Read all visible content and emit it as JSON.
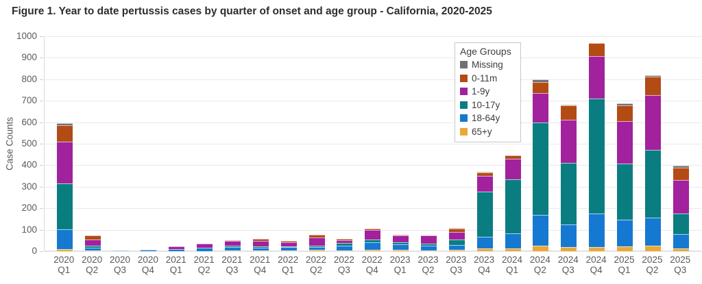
{
  "title": "Figure 1. Year to date pertussis cases by quarter of onset and age group - California, 2020-2025",
  "chart_data": {
    "type": "bar",
    "stacked": true,
    "stack_order": "bottom-to-top",
    "title": "Figure 1. Year to date pertussis cases by quarter of onset and age group - California, 2020-2025",
    "xlabel": "",
    "ylabel": "Case Counts",
    "ylim": [
      0,
      1000
    ],
    "ytick_interval": 100,
    "ytick_labels": [
      "0",
      "100",
      "200",
      "300",
      "400",
      "500",
      "600",
      "700",
      "800",
      "900",
      "1000"
    ],
    "grid": true,
    "categories": [
      "2020 Q1",
      "2020 Q2",
      "2020 Q3",
      "2020 Q4",
      "2021 Q1",
      "2021 Q2",
      "2021 Q3",
      "2021 Q4",
      "2022 Q1",
      "2022 Q2",
      "2022 Q3",
      "2022 Q4",
      "2023 Q1",
      "2023 Q2",
      "2023 Q3",
      "2023 Q4",
      "2024 Q1",
      "2024 Q2",
      "2024 Q3",
      "2024 Q4",
      "2025 Q1",
      "2025 Q2",
      "2025 Q3"
    ],
    "series": [
      {
        "name": "65+y",
        "color": "#eaa838",
        "values": [
          10,
          2,
          0,
          0,
          0,
          0,
          3,
          2,
          4,
          5,
          4,
          7,
          6,
          3,
          7,
          12,
          12,
          25,
          18,
          20,
          22,
          25,
          12
        ]
      },
      {
        "name": "18-64y",
        "color": "#1579d2",
        "values": [
          92,
          15,
          2,
          8,
          10,
          15,
          17,
          14,
          15,
          14,
          20,
          34,
          25,
          21,
          22,
          55,
          70,
          145,
          106,
          154,
          125,
          132,
          68
        ]
      },
      {
        "name": "10-17y",
        "color": "#0a7d81",
        "values": [
          212,
          8,
          0,
          0,
          1,
          2,
          5,
          7,
          3,
          5,
          14,
          14,
          12,
          11,
          25,
          209,
          252,
          430,
          287,
          536,
          262,
          315,
          94
        ]
      },
      {
        "name": "1-9y",
        "color": "#a2219c",
        "values": [
          195,
          30,
          0,
          0,
          12,
          17,
          24,
          26,
          20,
          40,
          14,
          44,
          31,
          39,
          36,
          74,
          95,
          135,
          200,
          198,
          196,
          254,
          156
        ]
      },
      {
        "name": "0-11m",
        "color": "#b34b15",
        "values": [
          78,
          17,
          0,
          0,
          0,
          0,
          1,
          8,
          6,
          13,
          5,
          5,
          1,
          0,
          14,
          16,
          16,
          53,
          69,
          60,
          75,
          86,
          59
        ]
      },
      {
        "name": "Missing",
        "color": "#6f7173",
        "values": [
          8,
          0,
          0,
          0,
          0,
          0,
          0,
          0,
          1,
          1,
          1,
          1,
          0,
          0,
          3,
          2,
          2,
          10,
          2,
          0,
          7,
          8,
          9
        ]
      }
    ],
    "legend": {
      "title": "Age Groups",
      "position": "top-right",
      "order": [
        "Missing",
        "0-11m",
        "1-9y",
        "10-17y",
        "18-64y",
        "65+y"
      ]
    }
  },
  "colors": {
    "background": "#ffffff",
    "gridline": "#e9e9e9",
    "axis_text": "#5a5a5a",
    "title_text": "#2d2d2d"
  }
}
